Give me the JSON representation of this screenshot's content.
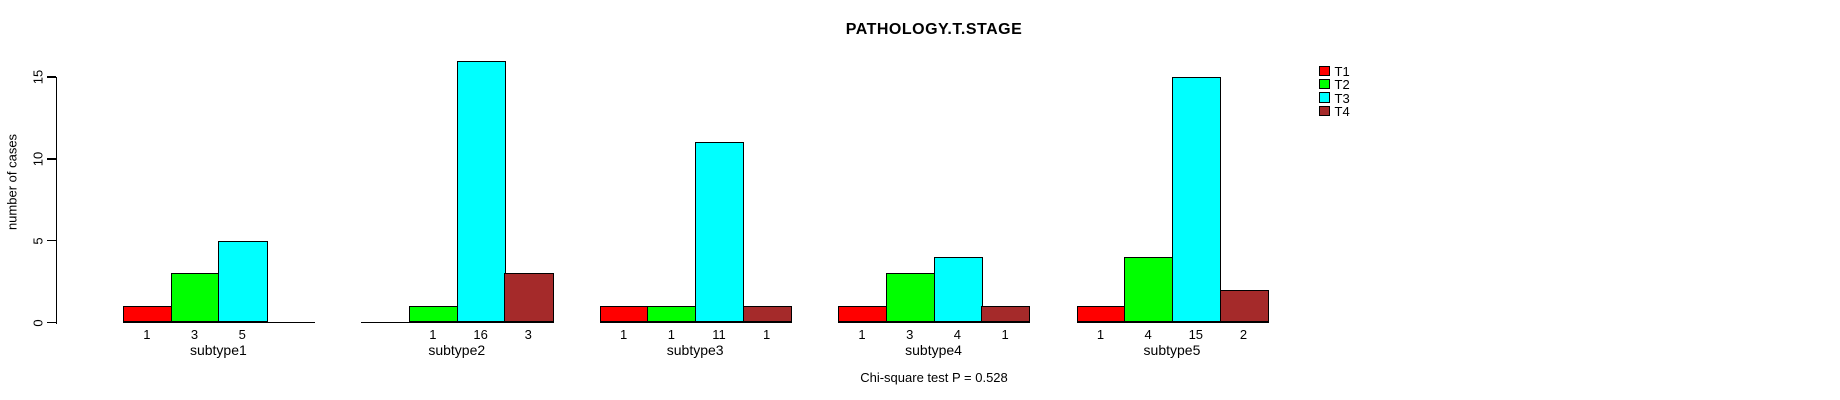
{
  "chart_data": {
    "type": "bar",
    "title": "PATHOLOGY.T.STAGE",
    "xlabel": "",
    "ylabel": "number of cases",
    "annotation": "Chi-square test P = 0.528",
    "categories": [
      "subtype1",
      "subtype2",
      "subtype3",
      "subtype4",
      "subtype5"
    ],
    "series": [
      {
        "name": "T1",
        "color": "#FF0000",
        "values": [
          1,
          0,
          1,
          1,
          1
        ]
      },
      {
        "name": "T2",
        "color": "#00FF00",
        "values": [
          3,
          1,
          1,
          3,
          4
        ]
      },
      {
        "name": "T3",
        "color": "#00FFFF",
        "values": [
          5,
          16,
          11,
          4,
          15
        ]
      },
      {
        "name": "T4",
        "color": "#A52A2A",
        "values": [
          0,
          3,
          1,
          1,
          2
        ]
      }
    ],
    "yticks": [
      0,
      5,
      10,
      15
    ],
    "ylim": [
      0,
      16.8
    ],
    "grid": false,
    "legend_position": "right",
    "bar_value_labels": "each non-zero bar labeled with its count below the baseline; zero bars drawn as empty slots with no label",
    "axis_color": "#000000",
    "background_color": "#FFFFFF"
  }
}
